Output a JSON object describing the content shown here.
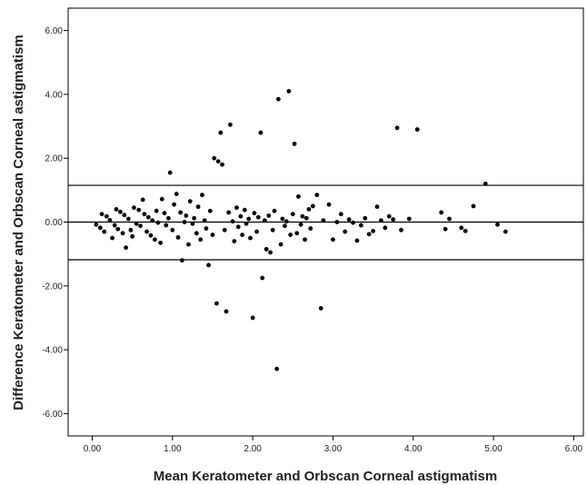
{
  "chart_data": {
    "type": "scatter",
    "title": "",
    "xlabel": "Mean Keratometer and Orbscan Corneal astigmatism",
    "ylabel": "Difference Keratometer and Orbscan Corneal astigmatism",
    "xlim": [
      -0.3,
      6.12
    ],
    "ylim": [
      -6.7,
      6.7
    ],
    "x_ticks": [
      0.0,
      1.0,
      2.0,
      3.0,
      4.0,
      5.0,
      6.0
    ],
    "x_tick_labels": [
      "0.00",
      "1.00",
      "2.00",
      "3.00",
      "4.00",
      "5.00",
      "6.00"
    ],
    "y_ticks": [
      6.0,
      4.0,
      2.0,
      0.0,
      -2.0,
      -4.0,
      -6.0
    ],
    "y_tick_labels": [
      "6.00",
      "4.00",
      "2.00",
      "0.00",
      "-2.00",
      "-4.00",
      "-6.00"
    ],
    "grid": false,
    "legend": "none",
    "reference_lines": [
      {
        "y": 1.15
      },
      {
        "y": 0.0
      },
      {
        "y": -1.18
      }
    ],
    "points": [
      [
        0.05,
        -0.08
      ],
      [
        0.1,
        -0.18
      ],
      [
        0.12,
        0.25
      ],
      [
        0.15,
        -0.3
      ],
      [
        0.18,
        0.18
      ],
      [
        0.22,
        0.06
      ],
      [
        0.25,
        -0.5
      ],
      [
        0.28,
        -0.1
      ],
      [
        0.3,
        0.4
      ],
      [
        0.32,
        -0.22
      ],
      [
        0.35,
        0.32
      ],
      [
        0.38,
        -0.35
      ],
      [
        0.4,
        0.22
      ],
      [
        0.42,
        -0.8
      ],
      [
        0.45,
        0.1
      ],
      [
        0.48,
        -0.25
      ],
      [
        0.5,
        -0.45
      ],
      [
        0.52,
        0.45
      ],
      [
        0.55,
        -0.05
      ],
      [
        0.58,
        0.38
      ],
      [
        0.6,
        -0.12
      ],
      [
        0.63,
        0.7
      ],
      [
        0.65,
        0.25
      ],
      [
        0.68,
        -0.3
      ],
      [
        0.7,
        0.15
      ],
      [
        0.73,
        -0.42
      ],
      [
        0.75,
        0.05
      ],
      [
        0.78,
        -0.55
      ],
      [
        0.8,
        0.35
      ],
      [
        0.82,
        -0.02
      ],
      [
        0.85,
        -0.65
      ],
      [
        0.87,
        0.72
      ],
      [
        0.9,
        0.28
      ],
      [
        0.92,
        -0.1
      ],
      [
        0.95,
        0.12
      ],
      [
        0.97,
        1.55
      ],
      [
        1.0,
        -0.25
      ],
      [
        1.02,
        0.55
      ],
      [
        1.05,
        0.88
      ],
      [
        1.07,
        -0.48
      ],
      [
        1.1,
        0.3
      ],
      [
        1.12,
        -1.2
      ],
      [
        1.15,
        0.0
      ],
      [
        1.17,
        0.2
      ],
      [
        1.2,
        -0.7
      ],
      [
        1.22,
        0.65
      ],
      [
        1.25,
        -0.05
      ],
      [
        1.27,
        0.12
      ],
      [
        1.3,
        -0.35
      ],
      [
        1.32,
        0.48
      ],
      [
        1.35,
        -0.55
      ],
      [
        1.37,
        0.85
      ],
      [
        1.4,
        0.05
      ],
      [
        1.42,
        -0.2
      ],
      [
        1.45,
        -1.35
      ],
      [
        1.47,
        0.35
      ],
      [
        1.5,
        -0.4
      ],
      [
        1.52,
        2.0
      ],
      [
        1.55,
        -2.55
      ],
      [
        1.57,
        1.9
      ],
      [
        1.6,
        2.8
      ],
      [
        1.62,
        1.8
      ],
      [
        1.65,
        -0.25
      ],
      [
        1.67,
        -2.8
      ],
      [
        1.7,
        0.3
      ],
      [
        1.72,
        3.05
      ],
      [
        1.75,
        0.02
      ],
      [
        1.77,
        -0.6
      ],
      [
        1.8,
        0.45
      ],
      [
        1.82,
        -0.15
      ],
      [
        1.85,
        0.18
      ],
      [
        1.87,
        -0.4
      ],
      [
        1.9,
        0.38
      ],
      [
        1.92,
        -0.05
      ],
      [
        1.95,
        0.1
      ],
      [
        1.97,
        -0.5
      ],
      [
        2.0,
        -3.0
      ],
      [
        2.02,
        0.28
      ],
      [
        2.05,
        -0.3
      ],
      [
        2.07,
        0.15
      ],
      [
        2.1,
        2.8
      ],
      [
        2.12,
        -1.75
      ],
      [
        2.15,
        0.05
      ],
      [
        2.17,
        -0.85
      ],
      [
        2.2,
        0.2
      ],
      [
        2.22,
        -0.95
      ],
      [
        2.25,
        -0.25
      ],
      [
        2.27,
        0.35
      ],
      [
        2.3,
        -4.6
      ],
      [
        2.32,
        3.85
      ],
      [
        2.35,
        -0.7
      ],
      [
        2.37,
        0.1
      ],
      [
        2.4,
        -0.12
      ],
      [
        2.42,
        0.02
      ],
      [
        2.45,
        4.1
      ],
      [
        2.47,
        -0.4
      ],
      [
        2.5,
        0.25
      ],
      [
        2.52,
        2.45
      ],
      [
        2.55,
        -0.35
      ],
      [
        2.57,
        0.8
      ],
      [
        2.6,
        -0.08
      ],
      [
        2.62,
        0.18
      ],
      [
        2.65,
        -0.55
      ],
      [
        2.67,
        0.12
      ],
      [
        2.7,
        0.4
      ],
      [
        2.72,
        -0.2
      ],
      [
        2.75,
        0.5
      ],
      [
        2.8,
        0.85
      ],
      [
        2.85,
        -2.7
      ],
      [
        2.88,
        0.05
      ],
      [
        2.95,
        0.55
      ],
      [
        3.0,
        -0.55
      ],
      [
        3.05,
        0.0
      ],
      [
        3.1,
        0.25
      ],
      [
        3.15,
        -0.3
      ],
      [
        3.2,
        0.08
      ],
      [
        3.25,
        -0.02
      ],
      [
        3.3,
        -0.58
      ],
      [
        3.35,
        -0.1
      ],
      [
        3.4,
        0.12
      ],
      [
        3.45,
        -0.38
      ],
      [
        3.5,
        -0.28
      ],
      [
        3.55,
        0.48
      ],
      [
        3.6,
        0.05
      ],
      [
        3.65,
        -0.18
      ],
      [
        3.7,
        0.18
      ],
      [
        3.75,
        0.08
      ],
      [
        3.8,
        2.95
      ],
      [
        3.85,
        -0.25
      ],
      [
        3.95,
        0.1
      ],
      [
        4.05,
        2.9
      ],
      [
        4.35,
        0.3
      ],
      [
        4.4,
        -0.22
      ],
      [
        4.45,
        0.1
      ],
      [
        4.6,
        -0.18
      ],
      [
        4.65,
        -0.28
      ],
      [
        4.75,
        0.5
      ],
      [
        4.9,
        1.2
      ],
      [
        5.05,
        -0.08
      ],
      [
        5.15,
        -0.3
      ]
    ]
  }
}
